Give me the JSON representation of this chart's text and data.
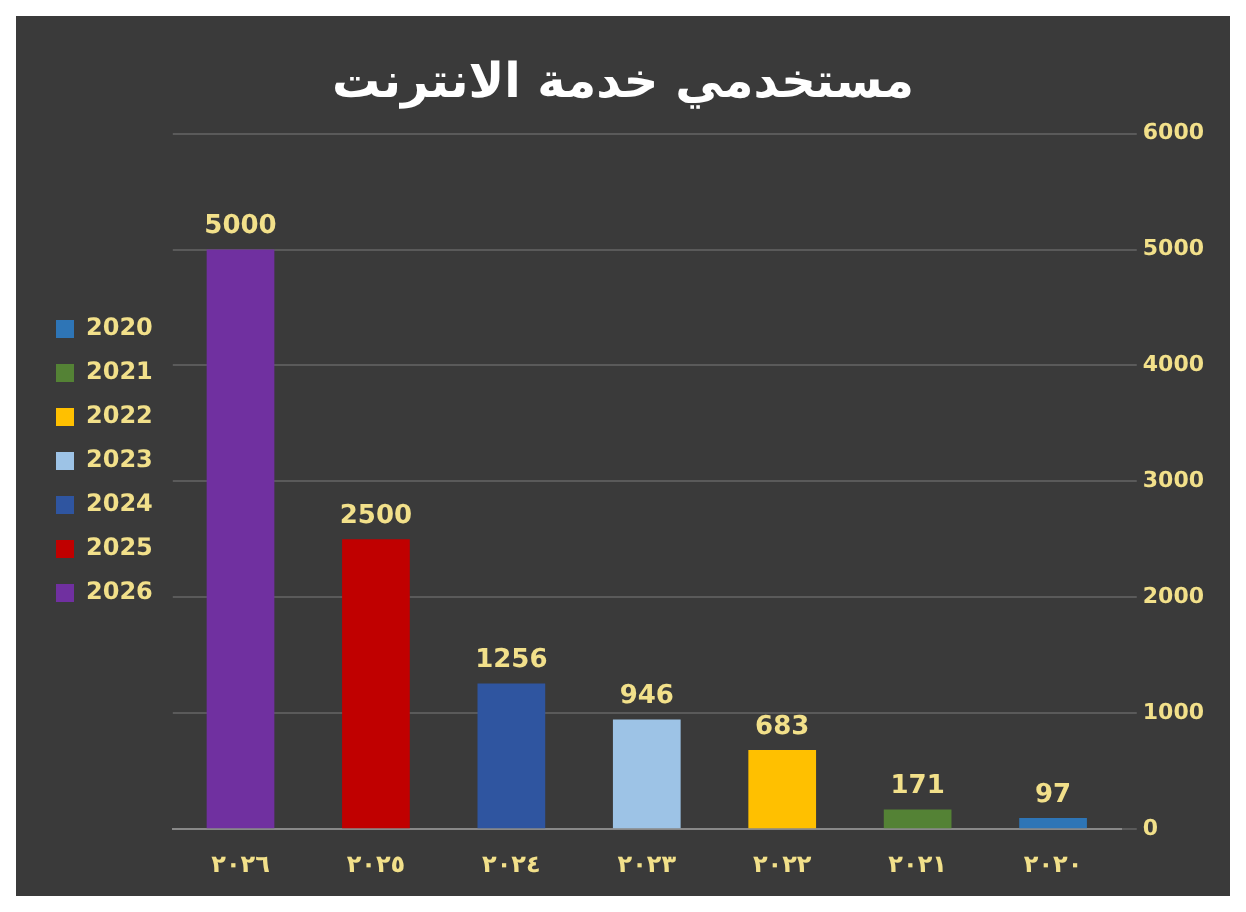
{
  "chart_data": {
    "type": "bar",
    "title": "مستخدمي خدمة الانترنت",
    "categories": [
      "٢٠٢٦",
      "٢٠٢٥",
      "٢٠٢٤",
      "٢٠٢٣",
      "٢٠٢٢",
      "٢٠٢١",
      "٢٠٢٠"
    ],
    "series": [
      {
        "name": "2020",
        "color": "#2e75b6",
        "values": [
          null,
          null,
          null,
          null,
          null,
          null,
          97
        ]
      },
      {
        "name": "2021",
        "color": "#548235",
        "values": [
          null,
          null,
          null,
          null,
          null,
          171,
          null
        ]
      },
      {
        "name": "2022",
        "color": "#ffc000",
        "values": [
          null,
          null,
          null,
          null,
          683,
          null,
          null
        ]
      },
      {
        "name": "2023",
        "color": "#9dc3e6",
        "values": [
          null,
          null,
          null,
          946,
          null,
          null,
          null
        ]
      },
      {
        "name": "2024",
        "color": "#2f55a0",
        "values": [
          null,
          null,
          1256,
          null,
          null,
          null,
          null
        ]
      },
      {
        "name": "2025",
        "color": "#c00000",
        "values": [
          null,
          2500,
          null,
          null,
          null,
          null,
          null
        ]
      },
      {
        "name": "2026",
        "color": "#7030a0",
        "values": [
          5000,
          null,
          null,
          null,
          null,
          null,
          null
        ]
      }
    ],
    "stacked": true,
    "ylim": [
      0,
      6000
    ],
    "yticks": [
      0,
      1000,
      2000,
      3000,
      4000,
      5000,
      6000
    ],
    "grid": "y",
    "legend": "left",
    "data_labels": true
  }
}
